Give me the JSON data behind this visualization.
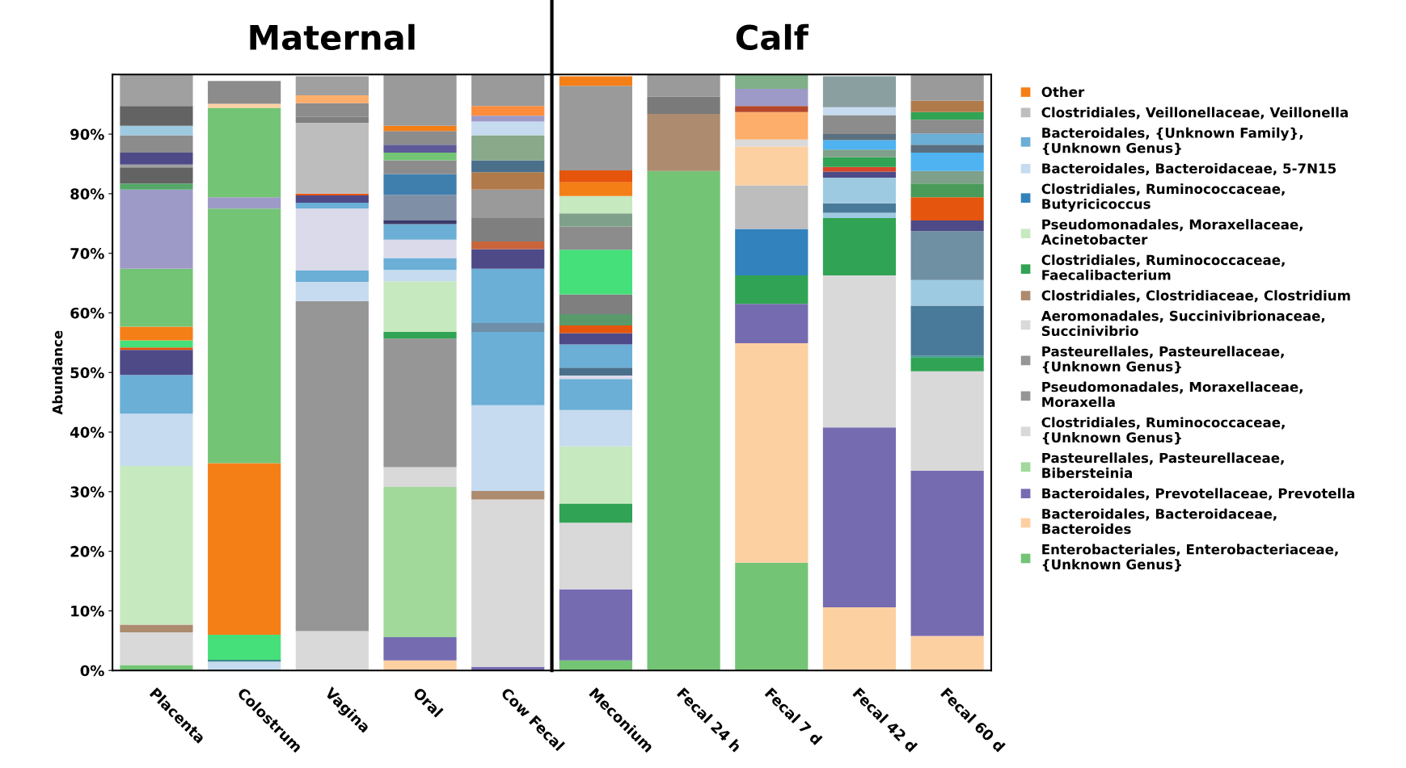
{
  "chart_data": {
    "type": "bar",
    "stacked": true,
    "ylabel": "Abundance",
    "categories": [
      "Placenta",
      "Colostrum",
      "Vagina",
      "Oral",
      "Cow Fecal",
      "Meconium",
      "Fecal 24 h",
      "Fecal 7 d",
      "Fecal 42 d",
      "Fecal 60 d"
    ],
    "ylim": [
      0,
      100
    ],
    "yticks": [
      {
        "value": 0,
        "label": "0%"
      },
      {
        "value": 10,
        "label": "10%"
      },
      {
        "value": 20,
        "label": "20%"
      },
      {
        "value": 30,
        "label": "30%"
      },
      {
        "value": 40,
        "label": "40%"
      },
      {
        "value": 50,
        "label": "50%"
      },
      {
        "value": 60,
        "label": "60%"
      },
      {
        "value": 70,
        "label": "70%"
      },
      {
        "value": 80,
        "label": "80%"
      },
      {
        "value": 90,
        "label": "90%"
      }
    ],
    "grid": false,
    "legend": "right",
    "annotations": [
      "Maternal",
      "Calf"
    ],
    "series": [
      {
        "name": "Enterobacteriales, Enterobacteriaceae,\n{Unknown Genus}",
        "color": "#74c476",
        "values": [
          0.9,
          null,
          null,
          null,
          null,
          1.7,
          83.8,
          18.1,
          null,
          null
        ]
      },
      {
        "name": "Bacteroidales, Bacteroidaceae,\nBacteroides",
        "color": "#fdd0a2",
        "values": [
          null,
          null,
          null,
          1.7,
          null,
          null,
          null,
          36.8,
          10.6,
          5.8
        ]
      },
      {
        "name": "Bacteroidales, Prevotellaceae, Prevotella",
        "color": "#756bb1",
        "values": [
          null,
          null,
          null,
          3.9,
          0.6,
          11.9,
          null,
          6.6,
          30.2,
          27.7
        ]
      },
      {
        "name": "Pasteurellales, Pasteurellaceae,\nBibersteinia",
        "color": "#a1d99b",
        "values": [
          null,
          null,
          null,
          25.2,
          null,
          null,
          null,
          null,
          null,
          null
        ]
      },
      {
        "name": "Clostridiales, Ruminococcaceae,\n{Unknown Genus}",
        "color": "#d9d9d9",
        "values": [
          5.5,
          null,
          6.6,
          3.3,
          28.1,
          11.2,
          null,
          null,
          25.5,
          16.7
        ]
      },
      {
        "name": "Pseudomonadales, Moraxellaceae,\nMoraxella",
        "color": "#969696",
        "values": [
          null,
          null,
          null,
          21.6,
          null,
          null,
          null,
          null,
          null,
          null
        ]
      },
      {
        "name": "Pasteurellales, Pasteurellaceae,\n{Unknown Genus}",
        "color": "#969696",
        "values": [
          null,
          null,
          55.4,
          null,
          null,
          null,
          null,
          null,
          null,
          null
        ]
      },
      {
        "name": "Aeromonadales, Succinivibrionaceae,\nSuccinivibrio",
        "color": "#d9d9d9",
        "values": [
          null,
          null,
          null,
          null,
          null,
          null,
          null,
          null,
          null,
          null
        ]
      },
      {
        "name": "Clostridiales, Clostridiaceae, Clostridium",
        "color": "#ad8b6f",
        "values": [
          1.3,
          null,
          null,
          null,
          1.4,
          null,
          9.6,
          null,
          null,
          null
        ]
      },
      {
        "name": "Clostridiales, Ruminococcaceae,\nFaecalibacterium",
        "color": "#31a354",
        "values": [
          null,
          null,
          null,
          1.1,
          null,
          3.2,
          null,
          4.8,
          9.6,
          2.3
        ]
      },
      {
        "name": "Pseudomonadales, Moraxellaceae,\nAcinetobacter",
        "color": "#c7e9c0",
        "values": [
          26.6,
          null,
          null,
          8.5,
          null,
          9.6,
          null,
          null,
          null,
          null
        ]
      },
      {
        "name": "Clostridiales, Ruminococcaceae,\nButyricicoccus",
        "color": "#3182bd",
        "values": [
          null,
          null,
          null,
          null,
          null,
          null,
          null,
          7.8,
          null,
          null
        ]
      },
      {
        "name": "Bacteroidales, Bacteroidaceae, 5-7N15",
        "color": "#c6dbef",
        "values": [
          8.8,
          1.5,
          3.2,
          1.9,
          14.4,
          6.1,
          null,
          null,
          null,
          null
        ]
      },
      {
        "name": "Bacteroidales, {Unknown Family},\n{Unknown Genus}",
        "color": "#6baed6",
        "values": [
          6.5,
          null,
          1.9,
          2.0,
          12.3,
          5.2,
          null,
          null,
          null,
          null
        ]
      },
      {
        "name": "Clostridiales, Veillonellaceae, Veillonella",
        "color": "#bdbdbd",
        "values": [
          null,
          null,
          null,
          null,
          null,
          null,
          null,
          7.3,
          null,
          null
        ]
      },
      {
        "name": "Other",
        "color": "#f57f17",
        "values": [
          null,
          null,
          null,
          null,
          null,
          null,
          null,
          null,
          null,
          null
        ]
      },
      {
        "values": [
          4.2,
          0.3,
          10.4,
          3.1,
          1.5,
          0.6,
          2.9,
          6.5,
          0.9,
          0.3
        ],
        "colors": [
          "#4e4a87",
          "#3a8a8a",
          "#dadaeb",
          "#dadaeb",
          "#6f8fa8",
          "#dadaeb",
          "#7a7a7a",
          "#fdd0a2",
          "#9ecae1",
          "#3a9a8a"
        ]
      },
      {
        "values": [
          0.4,
          4.2,
          1.0,
          2.6,
          9.1,
          1.3,
          3.6,
          1.2,
          1.6,
          8.4
        ],
        "colors": [
          "#e6550d",
          "#45e07a",
          "#6baed6",
          "#6baed6",
          "#6baed6",
          "#4a6f8a",
          "#9a9a9a",
          "#dadada",
          "#4a7a9a",
          "#4a7a9a"
        ]
      },
      {
        "values": [
          1.2,
          28.8,
          1.2,
          0.6,
          3.3,
          3.9,
          null,
          4.6,
          4.3,
          4.3
        ],
        "colors": [
          "#45e07a",
          "#f57f17",
          "#4e4a87",
          "#3a3a6a",
          "#4e4a87",
          "#6baed6",
          null,
          "#fdae6b",
          "#9ecae1",
          "#9ecae1"
        ]
      },
      {
        "values": [
          2.3,
          42.7,
          0.3,
          4.3,
          1.3,
          1.9,
          null,
          1.0,
          1.0,
          8.2
        ],
        "colors": [
          "#f57f17",
          "#74c476",
          "#e6550d",
          "#7f8fa6",
          "#c8653a",
          "#4e4a87",
          null,
          "#b5472a",
          "#4e4a87",
          "#6f8fa3"
        ]
      },
      {
        "values": [
          9.7,
          1.9,
          11.9,
          3.5,
          3.9,
          1.3,
          null,
          2.9,
          0.8,
          1.8
        ],
        "colors": [
          "#74c476",
          "#9e9ac8",
          "#bdbdbd",
          "#3f7fae",
          "#7f7f7f",
          "#e6550d",
          null,
          "#9e9ac8",
          "#d6452a",
          "#4e4a87"
        ]
      },
      {
        "values": [
          13.3,
          15.0,
          1.0,
          2.3,
          4.8,
          1.9,
          null,
          2.3,
          1.6,
          3.9
        ],
        "colors": [
          "#9e9ac8",
          "#74c476",
          "#7f7f7f",
          "#8c8c8c",
          "#9a9a9a",
          "#5a9a6a",
          null,
          "#7fb08a",
          "#31a354",
          "#e6550d"
        ]
      },
      {
        "values": [
          1.0,
          0.7,
          2.3,
          1.3,
          2.9,
          3.3,
          null,
          null,
          1.3,
          2.3
        ],
        "colors": [
          "#55a868",
          "#fdd0a2",
          "#8c8c8c",
          "#74c476",
          "#b07a4a",
          "#7f7f7f",
          null,
          null,
          "#7fa08a",
          "#4a9a5a"
        ]
      },
      {
        "values": [
          2.7,
          3.8,
          1.3,
          1.3,
          2.0,
          7.5,
          null,
          null,
          1.6,
          2.1
        ],
        "colors": [
          "#636363",
          "#8c8c8c",
          "#fdae6b",
          "#5e5a9a",
          "#4a6f8a",
          "#45e07a",
          null,
          null,
          "#4eb3f0",
          "#7fa08a"
        ]
      },
      {
        "values": [
          0.5,
          null,
          3.2,
          2.3,
          4.2,
          3.9,
          null,
          null,
          1.0,
          3.1
        ],
        "colors": [
          "#a0a0a0",
          null,
          "#a0a0a0",
          "#8c8c8c",
          "#8aa88a",
          "#8c8c8c",
          null,
          null,
          "#5a6f80",
          "#4eb3f0"
        ]
      },
      {
        "values": [
          2.0,
          null,
          null,
          0.9,
          2.3,
          2.2,
          null,
          null,
          3.2,
          1.3
        ],
        "colors": [
          "#4e4a87",
          null,
          null,
          "#f57f17",
          "#c6dbef",
          "#7fa08a",
          null,
          null,
          "#8c8c8c",
          "#5a6f80"
        ]
      },
      {
        "values": [
          2.9,
          null,
          null,
          8.5,
          1.0,
          2.9,
          null,
          null,
          1.3,
          1.9
        ],
        "colors": [
          "#8c8c8c",
          null,
          null,
          "#9a9a9a",
          "#9e9ac8",
          "#c7e9c0",
          null,
          null,
          "#c6dbef",
          "#6baed6"
        ]
      },
      {
        "values": [
          1.6,
          null,
          null,
          null,
          1.6,
          2.3,
          null,
          null,
          5.2,
          2.3
        ],
        "colors": [
          "#9ecae1",
          null,
          null,
          null,
          "#fd8d3c",
          "#f57f17",
          null,
          null,
          "#8aa0a0",
          "#8c8c8c"
        ]
      },
      {
        "values": [
          3.3,
          null,
          null,
          null,
          5.2,
          2.0,
          null,
          null,
          null,
          1.3
        ],
        "colors": [
          "#636363",
          null,
          null,
          null,
          "#9a9a9a",
          "#e6550d",
          null,
          null,
          null,
          "#31a354"
        ]
      },
      {
        "values": [
          5.2,
          null,
          null,
          null,
          null,
          14.2,
          null,
          null,
          null,
          1.9
        ],
        "colors": [
          "#a0a0a0",
          null,
          null,
          null,
          null,
          "#9a9a9a",
          null,
          null,
          null,
          "#b07a4a"
        ]
      },
      {
        "values": [
          null,
          null,
          null,
          null,
          null,
          1.6,
          null,
          null,
          null,
          4.3
        ],
        "colors": [
          null,
          null,
          null,
          null,
          null,
          "#f57f17",
          null,
          null,
          null,
          "#9a9a9a"
        ]
      }
    ]
  }
}
